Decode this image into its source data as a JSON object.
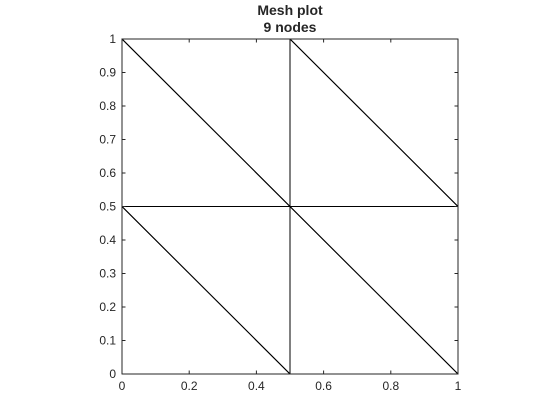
{
  "chart_data": {
    "type": "mesh",
    "title": [
      "Mesh plot",
      "9 nodes"
    ],
    "xlabel": "",
    "ylabel": "",
    "xlim": [
      0,
      1
    ],
    "ylim": [
      0,
      1
    ],
    "xticks": [
      0,
      0.2,
      0.4,
      0.6,
      0.8,
      1
    ],
    "xtick_labels": [
      "0",
      "0.2",
      "0.4",
      "0.6",
      "0.8",
      "1"
    ],
    "yticks": [
      0,
      0.1,
      0.2,
      0.3,
      0.4,
      0.5,
      0.6,
      0.7,
      0.8,
      0.9,
      1
    ],
    "ytick_labels": [
      "0",
      "0.1",
      "0.2",
      "0.3",
      "0.4",
      "0.5",
      "0.6",
      "0.7",
      "0.8",
      "0.9",
      "1"
    ],
    "grid": false,
    "nodes": [
      [
        0,
        0
      ],
      [
        0.5,
        0
      ],
      [
        1,
        0
      ],
      [
        0,
        0.5
      ],
      [
        0.5,
        0.5
      ],
      [
        1,
        0.5
      ],
      [
        0,
        1
      ],
      [
        0.5,
        1
      ],
      [
        1,
        1
      ]
    ],
    "elements": [
      [
        0,
        1,
        3
      ],
      [
        1,
        4,
        3
      ],
      [
        1,
        2,
        4
      ],
      [
        2,
        5,
        4
      ],
      [
        3,
        4,
        6
      ],
      [
        4,
        7,
        6
      ],
      [
        4,
        5,
        7
      ],
      [
        5,
        8,
        7
      ]
    ],
    "edge_color": "#000000",
    "axis_color": "#262626"
  }
}
